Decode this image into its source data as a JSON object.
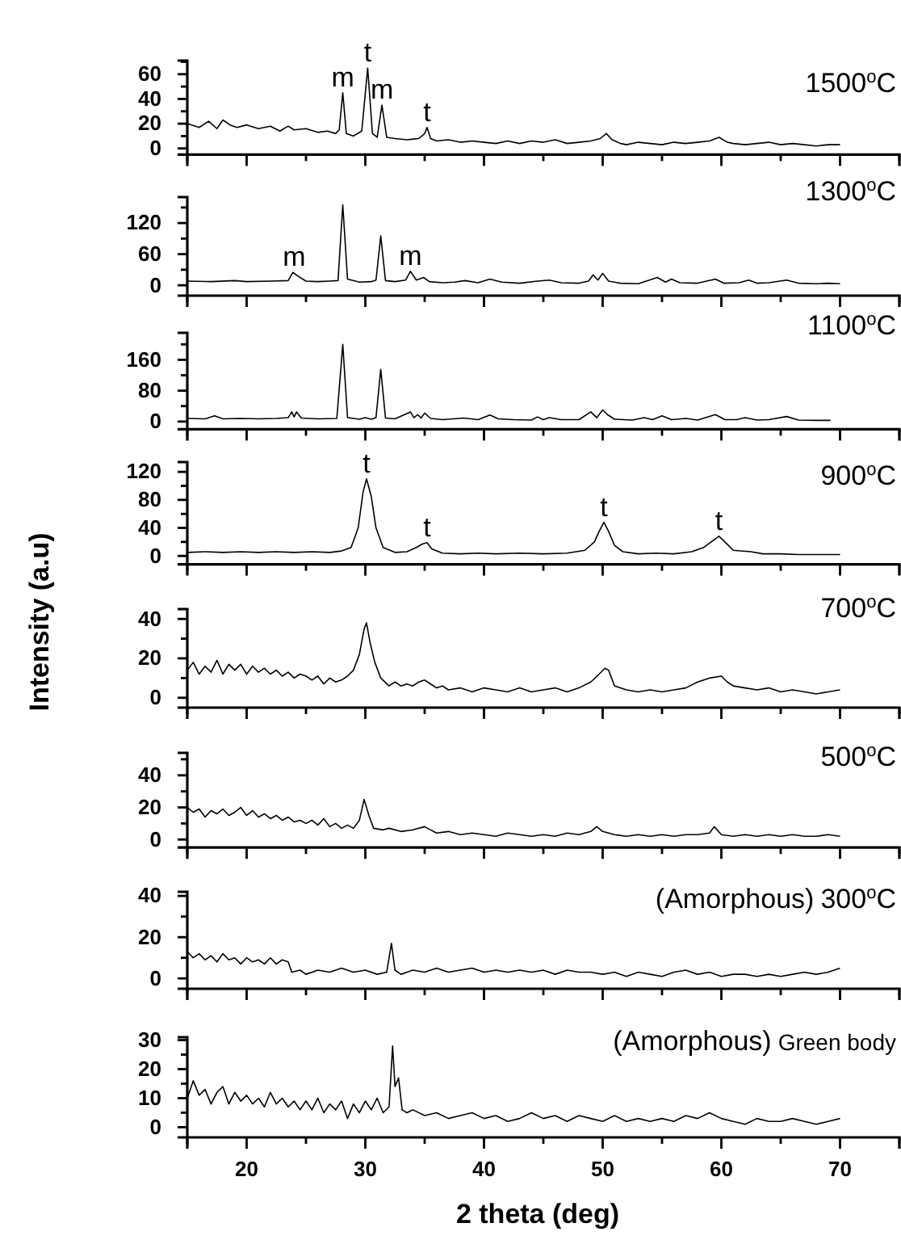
{
  "chart_data": [
    {
      "type": "line",
      "tick_labels": "y",
      "xlim": [
        15,
        75
      ],
      "xticks": [
        {
          "value": 15,
          "label": null
        },
        20,
        {
          "value": 25,
          "label": null
        },
        30,
        {
          "value": 35,
          "label": null
        },
        40,
        {
          "value": 45,
          "label": null
        },
        50,
        {
          "value": 55,
          "label": null
        },
        60,
        {
          "value": 65,
          "label": null
        },
        70,
        {
          "value": 75,
          "label": null
        }
      ],
      "ylim": [
        -5,
        71
      ],
      "yticks": [
        0,
        {
          "value": 10,
          "label": null
        },
        20,
        {
          "value": 30,
          "label": null
        },
        40,
        {
          "value": 50,
          "label": null
        },
        60,
        {
          "value": 70,
          "label": null
        }
      ],
      "annotations": [
        "1500$^{o}$C",
        {
          "text": "m",
          "x": 28.1,
          "y": 45
        },
        {
          "text": "t",
          "x": 30.2,
          "y": 65
        },
        {
          "text": "m",
          "x": 31.4,
          "y": 35
        },
        {
          "text": "t",
          "x": 35.2,
          "y": 17
        }
      ],
      "x": [
        15,
        16,
        16.8,
        17.5,
        18,
        18.6,
        19.2,
        20,
        21,
        22,
        22.8,
        23.5,
        24,
        25,
        26,
        26.8,
        27.5,
        27.8,
        28.1,
        28.4,
        29,
        29.7,
        30.2,
        30.6,
        31,
        31.4,
        31.8,
        32.5,
        33.5,
        34.5,
        35,
        35.2,
        35.5,
        36,
        37,
        38,
        39,
        40,
        41,
        42,
        43,
        44,
        45,
        46,
        47,
        48,
        49,
        49.8,
        50.3,
        50.8,
        51.5,
        52,
        53,
        54,
        55,
        56,
        57,
        58,
        59,
        59.8,
        60.5,
        61,
        62,
        63,
        64,
        65,
        66,
        67,
        68,
        69,
        70
      ],
      "series": [
        {
          "color": "#000000",
          "values": [
            20,
            17,
            22,
            16,
            23,
            19,
            17,
            19,
            16,
            18,
            14,
            18,
            15,
            16,
            13,
            14,
            12,
            15,
            45,
            12,
            10,
            14,
            65,
            12,
            9,
            35,
            9,
            8,
            7,
            8,
            12,
            17,
            8,
            6,
            7,
            5,
            6,
            5,
            4,
            6,
            4,
            6,
            5,
            7,
            4,
            5,
            6,
            8,
            12,
            7,
            4,
            3,
            5,
            4,
            3,
            5,
            4,
            5,
            6,
            9,
            5,
            4,
            3,
            4,
            5,
            3,
            4,
            3,
            2,
            3,
            3
          ]
        }
      ]
    },
    {
      "type": "line",
      "tick_labels": "y",
      "xlim": [
        15,
        75
      ],
      "xticks": [
        {
          "value": 15,
          "label": null
        },
        20,
        {
          "value": 25,
          "label": null
        },
        30,
        {
          "value": 35,
          "label": null
        },
        40,
        {
          "value": 45,
          "label": null
        },
        50,
        {
          "value": 55,
          "label": null
        },
        60,
        {
          "value": 65,
          "label": null
        },
        70,
        {
          "value": 75,
          "label": null
        }
      ],
      "ylim": [
        -20,
        170
      ],
      "yticks": [
        0,
        {
          "value": 30,
          "label": null
        },
        60,
        {
          "value": 90,
          "label": null
        },
        120,
        {
          "value": 150,
          "label": null
        }
      ],
      "annotations": [
        "1300$^{o}$C",
        {
          "text": "m",
          "x": 24,
          "y": 25
        },
        {
          "text": "m",
          "x": 33.8,
          "y": 27
        }
      ],
      "x": [
        15,
        17,
        19,
        20,
        22,
        23.5,
        23.9,
        24.3,
        25,
        26,
        27,
        27.7,
        28.1,
        28.5,
        29.5,
        30.5,
        30.9,
        31.3,
        31.7,
        32.5,
        33.4,
        33.8,
        34.3,
        34.9,
        35.4,
        36.5,
        37.5,
        38.4,
        39.5,
        40.5,
        41.5,
        43,
        44.5,
        45.5,
        46.5,
        48,
        48.8,
        49.2,
        49.6,
        50,
        50.5,
        51.5,
        53,
        54.6,
        55.3,
        55.8,
        56.5,
        58,
        59.5,
        60.2,
        61.5,
        62.3,
        63,
        64,
        65.5,
        66.5,
        68,
        69,
        70
      ],
      "series": [
        {
          "color": "#000000",
          "values": [
            8,
            7,
            9,
            7,
            8,
            9,
            25,
            18,
            8,
            7,
            8,
            9,
            155,
            12,
            6,
            7,
            10,
            95,
            9,
            7,
            10,
            27,
            10,
            15,
            7,
            5,
            6,
            9,
            5,
            12,
            6,
            4,
            8,
            10,
            5,
            4,
            8,
            20,
            10,
            23,
            8,
            4,
            3,
            15,
            6,
            12,
            5,
            4,
            12,
            4,
            5,
            10,
            4,
            5,
            10,
            4,
            3,
            4,
            3
          ]
        }
      ]
    },
    {
      "type": "line",
      "tick_labels": "y",
      "xlim": [
        15,
        75
      ],
      "xticks": [
        {
          "value": 15,
          "label": null
        },
        20,
        {
          "value": 25,
          "label": null
        },
        30,
        {
          "value": 35,
          "label": null
        },
        40,
        {
          "value": 45,
          "label": null
        },
        50,
        {
          "value": 55,
          "label": null
        },
        60,
        {
          "value": 65,
          "label": null
        },
        70,
        {
          "value": 75,
          "label": null
        }
      ],
      "ylim": [
        -20,
        230
      ],
      "yticks": [
        0,
        {
          "value": 40,
          "label": null
        },
        80,
        {
          "value": 120,
          "label": null
        },
        160,
        {
          "value": 200,
          "label": null
        }
      ],
      "annotations": [
        "1100$^{o}$C"
      ],
      "x": [
        15,
        16.5,
        17.3,
        18,
        19.5,
        21,
        22.5,
        23.5,
        23.8,
        24,
        24.2,
        24.6,
        26,
        27.6,
        28.1,
        28.5,
        29.5,
        30,
        30.5,
        30.9,
        31.3,
        31.7,
        32.5,
        33.8,
        34.1,
        34.4,
        34.7,
        35,
        35.5,
        36.5,
        38.3,
        39.5,
        40.5,
        41.2,
        42.5,
        44,
        44.5,
        45,
        45.5,
        46.5,
        48,
        49,
        49.5,
        50,
        50.4,
        51,
        52.5,
        53.5,
        54.2,
        55,
        55.8,
        57,
        58,
        59.5,
        60.3,
        61.3,
        62,
        63,
        64,
        65.5,
        66.5,
        68,
        69.2
      ],
      "series": [
        {
          "color": "#000000",
          "values": [
            8,
            7,
            15,
            7,
            8,
            7,
            8,
            10,
            25,
            12,
            25,
            9,
            7,
            8,
            200,
            10,
            6,
            10,
            6,
            10,
            135,
            9,
            7,
            25,
            10,
            18,
            9,
            22,
            8,
            5,
            9,
            5,
            17,
            7,
            5,
            4,
            12,
            5,
            10,
            5,
            5,
            25,
            10,
            30,
            18,
            6,
            4,
            10,
            5,
            15,
            5,
            8,
            4,
            18,
            5,
            5,
            10,
            4,
            5,
            13,
            4,
            3,
            3
          ]
        }
      ]
    },
    {
      "type": "line",
      "tick_labels": "y",
      "xlim": [
        15,
        75
      ],
      "xticks": [
        {
          "value": 15,
          "label": null
        },
        20,
        {
          "value": 25,
          "label": null
        },
        30,
        {
          "value": 35,
          "label": null
        },
        40,
        {
          "value": 45,
          "label": null
        },
        50,
        {
          "value": 55,
          "label": null
        },
        60,
        {
          "value": 65,
          "label": null
        },
        70,
        {
          "value": 75,
          "label": null
        }
      ],
      "ylim": [
        -12,
        134
      ],
      "yticks": [
        0,
        {
          "value": 20,
          "label": null
        },
        40,
        {
          "value": 60,
          "label": null
        },
        80,
        {
          "value": 100,
          "label": null
        },
        120
      ],
      "annotations": [
        "900$^{o}$C",
        {
          "text": "t",
          "x": 30.1,
          "y": 110
        },
        {
          "text": "t",
          "x": 35.2,
          "y": 19
        },
        {
          "text": "t",
          "x": 50.1,
          "y": 48
        },
        {
          "text": "t",
          "x": 59.8,
          "y": 28
        }
      ],
      "x": [
        15,
        16.5,
        18,
        19.5,
        21,
        22.5,
        24,
        25.5,
        27,
        28,
        28.8,
        29.4,
        29.8,
        30.1,
        30.5,
        30.9,
        31.5,
        32.5,
        33.5,
        34.3,
        34.8,
        35.2,
        35.6,
        36.5,
        38,
        39.5,
        41,
        43,
        45,
        47,
        48.5,
        49.3,
        49.7,
        50.1,
        50.5,
        51,
        51.7,
        53,
        54.5,
        56,
        57.5,
        58.5,
        59.3,
        59.8,
        60.3,
        61,
        62.5,
        63.5,
        65,
        66.5,
        68,
        70
      ],
      "series": [
        {
          "color": "#000000",
          "values": [
            5,
            6,
            5,
            6,
            5,
            6,
            5,
            6,
            5,
            7,
            12,
            40,
            90,
            110,
            85,
            40,
            12,
            5,
            6,
            12,
            17,
            19,
            10,
            4,
            3,
            4,
            3,
            4,
            3,
            4,
            8,
            20,
            35,
            48,
            35,
            15,
            6,
            3,
            4,
            3,
            6,
            12,
            22,
            28,
            20,
            8,
            6,
            3,
            3,
            2,
            2,
            2
          ]
        }
      ]
    },
    {
      "type": "line",
      "tick_labels": "y",
      "xlim": [
        15,
        75
      ],
      "xticks": [
        {
          "value": 15,
          "label": null
        },
        20,
        {
          "value": 25,
          "label": null
        },
        30,
        {
          "value": 35,
          "label": null
        },
        40,
        {
          "value": 45,
          "label": null
        },
        50,
        {
          "value": 55,
          "label": null
        },
        60,
        {
          "value": 65,
          "label": null
        },
        70,
        {
          "value": 75,
          "label": null
        }
      ],
      "ylim": [
        -5,
        45
      ],
      "yticks": [
        0,
        {
          "value": 10,
          "label": null
        },
        20,
        {
          "value": 30,
          "label": null
        },
        40
      ],
      "ylabel": "Intensity (a.u)",
      "annotations": [
        "700$^{o}$C"
      ],
      "x": [
        15,
        15.5,
        16,
        16.5,
        17,
        17.5,
        18,
        18.5,
        19,
        19.5,
        20,
        20.5,
        21,
        21.5,
        22,
        22.5,
        23,
        23.5,
        24,
        24.5,
        25,
        25.5,
        26,
        26.5,
        27,
        27.5,
        28,
        28.5,
        29,
        29.5,
        29.9,
        30.1,
        30.4,
        30.8,
        31.3,
        32,
        32.5,
        33,
        33.5,
        34,
        34.5,
        35,
        35.5,
        36,
        36.5,
        37,
        38,
        39,
        40,
        41,
        42,
        43,
        44,
        45,
        46,
        47,
        48,
        49,
        49.7,
        50.2,
        50.5,
        51,
        52,
        53,
        54,
        55,
        56,
        57,
        58,
        59,
        60,
        60.5,
        61,
        62,
        63,
        64,
        65,
        66,
        67,
        68,
        69,
        70
      ],
      "series": [
        {
          "color": "#000000",
          "values": [
            14,
            18,
            12,
            16,
            13,
            19,
            12,
            17,
            14,
            17,
            12,
            16,
            13,
            15,
            12,
            14,
            11,
            13,
            10,
            12,
            11,
            9,
            11,
            7,
            10,
            8,
            9,
            11,
            14,
            22,
            35,
            38,
            28,
            18,
            10,
            6,
            8,
            6,
            7,
            6,
            8,
            9,
            7,
            5,
            6,
            4,
            5,
            3,
            5,
            4,
            3,
            5,
            3,
            4,
            5,
            3,
            5,
            8,
            12,
            15,
            14,
            6,
            4,
            3,
            4,
            3,
            4,
            5,
            8,
            10,
            11,
            8,
            6,
            5,
            4,
            5,
            3,
            4,
            3,
            2,
            3,
            4
          ]
        }
      ]
    },
    {
      "type": "line",
      "tick_labels": "y",
      "xlim": [
        15,
        75
      ],
      "xticks": [
        {
          "value": 15,
          "label": null
        },
        20,
        {
          "value": 25,
          "label": null
        },
        30,
        {
          "value": 35,
          "label": null
        },
        40,
        {
          "value": 45,
          "label": null
        },
        50,
        {
          "value": 55,
          "label": null
        },
        60,
        {
          "value": 65,
          "label": null
        },
        70,
        {
          "value": 75,
          "label": null
        }
      ],
      "ylim": [
        -5,
        54
      ],
      "yticks": [
        0,
        {
          "value": 10,
          "label": null
        },
        20,
        {
          "value": 30,
          "label": null
        },
        40,
        {
          "value": 50,
          "label": null
        }
      ],
      "annotations": [
        "500$^{o}$C"
      ],
      "x": [
        15,
        15.5,
        16,
        16.5,
        17,
        17.5,
        18,
        18.5,
        19,
        19.5,
        20,
        20.5,
        21,
        21.5,
        22,
        22.5,
        23,
        23.5,
        24,
        24.5,
        25,
        25.5,
        26,
        26.5,
        27,
        27.5,
        28,
        28.5,
        29,
        29.5,
        29.9,
        30.3,
        30.7,
        31.5,
        32,
        33,
        34,
        35,
        35.5,
        36,
        37,
        38,
        39,
        40,
        41,
        42,
        43,
        44,
        45,
        46,
        47,
        48,
        49,
        49.5,
        50,
        51,
        52,
        53,
        54,
        55,
        56,
        57,
        58,
        59,
        59.4,
        60,
        61,
        62,
        63,
        64,
        65,
        66,
        67,
        68,
        69,
        70
      ],
      "series": [
        {
          "color": "#000000",
          "values": [
            20,
            17,
            19,
            14,
            18,
            16,
            19,
            15,
            17,
            20,
            15,
            18,
            14,
            16,
            13,
            15,
            12,
            14,
            11,
            12,
            10,
            12,
            9,
            13,
            8,
            10,
            7,
            9,
            7,
            12,
            25,
            15,
            7,
            6,
            7,
            5,
            6,
            8,
            6,
            4,
            5,
            3,
            4,
            3,
            2,
            4,
            3,
            2,
            3,
            2,
            4,
            3,
            5,
            8,
            5,
            3,
            2,
            3,
            2,
            3,
            2,
            3,
            3,
            4,
            8,
            3,
            2,
            3,
            2,
            3,
            2,
            3,
            2,
            2,
            3,
            2
          ]
        }
      ]
    },
    {
      "type": "line",
      "tick_labels": "y",
      "xlim": [
        15,
        75
      ],
      "xticks": [
        {
          "value": 15,
          "label": null
        },
        20,
        {
          "value": 25,
          "label": null
        },
        30,
        {
          "value": 35,
          "label": null
        },
        40,
        {
          "value": 45,
          "label": null
        },
        50,
        {
          "value": 55,
          "label": null
        },
        60,
        {
          "value": 65,
          "label": null
        },
        70,
        {
          "value": 75,
          "label": null
        }
      ],
      "ylim": [
        -5,
        42
      ],
      "yticks": [
        0,
        {
          "value": 10,
          "label": null
        },
        20,
        {
          "value": 30,
          "label": null
        },
        40
      ],
      "annotations": [
        "(Amorphous)",
        "300$^{o}$C"
      ],
      "x": [
        15,
        15.5,
        16,
        16.5,
        17,
        17.5,
        18,
        18.5,
        19,
        19.5,
        20,
        20.5,
        21,
        21.5,
        22,
        22.5,
        23,
        23.5,
        23.8,
        24.5,
        25,
        26,
        27,
        28,
        29,
        30,
        31,
        31.8,
        32.2,
        32.5,
        33,
        34,
        35,
        36,
        37,
        38,
        39,
        40,
        41,
        42,
        43,
        44,
        45,
        46,
        47,
        48,
        49,
        50,
        51,
        52,
        53,
        54,
        55,
        56,
        57,
        58,
        59,
        60,
        61,
        62,
        63,
        64,
        65,
        66,
        67,
        68,
        69,
        70
      ],
      "series": [
        {
          "color": "#000000",
          "values": [
            13,
            10,
            12,
            9,
            11,
            8,
            12,
            9,
            10,
            7,
            10,
            8,
            9,
            7,
            10,
            7,
            9,
            8,
            3,
            4,
            2,
            4,
            3,
            5,
            3,
            4,
            2,
            3,
            17,
            4,
            2,
            4,
            3,
            5,
            3,
            4,
            5,
            3,
            4,
            3,
            4,
            3,
            4,
            2,
            4,
            3,
            3,
            2,
            3,
            1,
            3,
            2,
            1,
            3,
            4,
            2,
            3,
            1,
            2,
            2,
            1,
            2,
            1,
            2,
            3,
            2,
            3,
            5
          ]
        }
      ]
    },
    {
      "type": "line",
      "xlim": [
        15,
        75
      ],
      "xticks": [
        {
          "value": 15,
          "label": null
        },
        20,
        {
          "value": 25,
          "label": null
        },
        30,
        {
          "value": 35,
          "label": null
        },
        40,
        {
          "value": 45,
          "label": null
        },
        50,
        {
          "value": 55,
          "label": null
        },
        60,
        {
          "value": 65,
          "label": null
        },
        70,
        {
          "value": 75,
          "label": null
        }
      ],
      "ylim": [
        -3.5,
        31
      ],
      "yticks": [
        0,
        {
          "value": 5,
          "label": null
        },
        10,
        {
          "value": 15,
          "label": null
        },
        20,
        {
          "value": 25,
          "label": null
        },
        30
      ],
      "xlabel": "2 theta (deg)",
      "annotations": [
        "(Amorphous)",
        "Green body"
      ],
      "x": [
        15,
        15.5,
        16,
        16.5,
        17,
        17.5,
        18,
        18.5,
        19,
        19.5,
        20,
        20.5,
        21,
        21.5,
        22,
        22.5,
        23,
        23.5,
        24,
        24.5,
        25,
        25.5,
        26,
        26.5,
        27,
        27.5,
        28,
        28.5,
        29,
        29.5,
        30,
        30.5,
        31,
        31.5,
        32,
        32.3,
        32.5,
        32.8,
        33.1,
        33.5,
        34,
        35,
        36,
        37,
        38,
        39,
        40,
        41,
        42,
        43,
        44,
        45,
        46,
        47,
        48,
        49,
        50,
        51,
        52,
        53,
        54,
        55,
        56,
        57,
        58,
        59,
        60,
        61,
        62,
        63,
        64,
        65,
        66,
        67,
        68,
        69,
        70
      ],
      "series": [
        {
          "color": "#000000",
          "values": [
            10,
            16,
            11,
            13,
            8,
            12,
            14,
            8,
            12,
            9,
            11,
            8,
            10,
            7,
            12,
            8,
            10,
            7,
            9,
            6,
            9,
            6,
            10,
            5,
            8,
            6,
            9,
            3,
            8,
            5,
            9,
            6,
            10,
            5,
            7,
            28,
            14,
            17,
            6,
            5,
            6,
            4,
            5,
            3,
            4,
            5,
            3,
            4,
            2,
            3,
            5,
            3,
            4,
            2,
            4,
            3,
            2,
            4,
            2,
            3,
            2,
            3,
            2,
            4,
            3,
            5,
            3,
            2,
            1,
            3,
            2,
            2,
            3,
            2,
            1,
            2,
            3
          ]
        }
      ]
    }
  ]
}
